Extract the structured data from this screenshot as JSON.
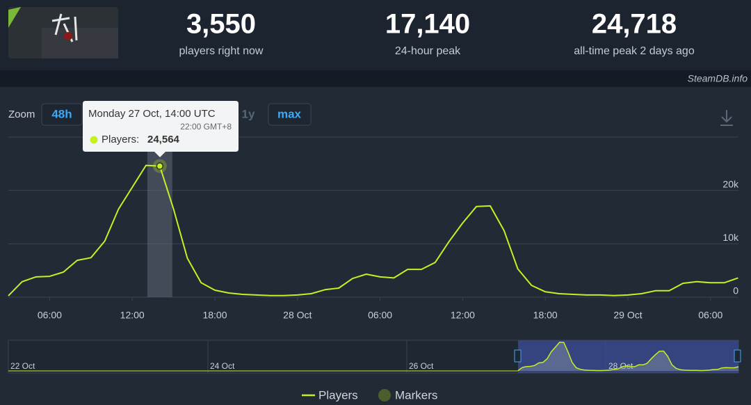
{
  "header": {
    "stats": [
      {
        "value": "3,550",
        "label": "players right now"
      },
      {
        "value": "17,140",
        "label": "24-hour peak"
      },
      {
        "value": "24,718",
        "label": "all-time peak 2 days ago"
      }
    ],
    "watermark": "SteamDB.info"
  },
  "zoom": {
    "label": "Zoom",
    "buttons": [
      "48h",
      "1y",
      "max"
    ]
  },
  "tooltip": {
    "date": "Monday 27 Oct, 14:00 UTC",
    "local": "22:00 GMT+8",
    "series": "Players:",
    "value": "24,564"
  },
  "chart_data": {
    "type": "line",
    "categories": [
      null,
      null,
      null,
      "06:00",
      null,
      null,
      null,
      null,
      null,
      "12:00",
      null,
      null,
      null,
      null,
      null,
      "18:00",
      null,
      null,
      null,
      null,
      null,
      "28 Oct",
      null,
      null,
      null,
      null,
      null,
      "06:00",
      null,
      null,
      null,
      null,
      null,
      "12:00",
      null,
      null,
      null,
      null,
      null,
      "18:00",
      null,
      null,
      null,
      null,
      null,
      "29 Oct",
      null,
      null,
      null,
      null,
      null,
      "06:00",
      null,
      null
    ],
    "series": [
      {
        "name": "Players",
        "color": "#c6f024",
        "values": [
          250,
          2900,
          3800,
          3900,
          4700,
          6900,
          7400,
          10500,
          16500,
          20600,
          24700,
          24564,
          16500,
          7300,
          2700,
          1300,
          780,
          520,
          400,
          300,
          300,
          400,
          650,
          1400,
          1700,
          3500,
          4300,
          3800,
          3600,
          5200,
          5200,
          6500,
          10400,
          13900,
          17000,
          17100,
          12500,
          5300,
          2200,
          1000,
          650,
          520,
          400,
          400,
          300,
          400,
          650,
          1200,
          1200,
          2600,
          2900,
          2700,
          2700,
          3600
        ]
      }
    ],
    "markers_label": "Markers",
    "ylim": [
      0,
      30000
    ],
    "yticks": [
      {
        "value": 0,
        "label": "0"
      },
      {
        "value": 10000,
        "label": "10k"
      },
      {
        "value": 20000,
        "label": "20k"
      }
    ],
    "grid": true,
    "legend": "bottom"
  },
  "navigator": {
    "labels": [
      "22 Oct",
      "24 Oct",
      "26 Oct",
      "28 Oct"
    ]
  }
}
